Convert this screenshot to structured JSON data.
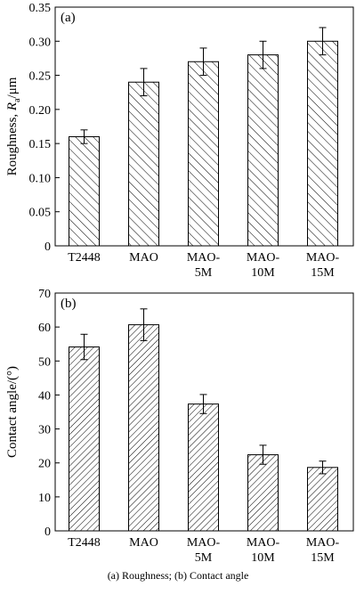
{
  "caption": "(a) Roughness; (b) Contact angle",
  "chart_data": [
    {
      "type": "bar",
      "panel_label": "(a)",
      "categories": [
        [
          "T2448"
        ],
        [
          "MAO"
        ],
        [
          "MAO-",
          "5M"
        ],
        [
          "MAO-",
          "10M"
        ],
        [
          "MAO-",
          "15M"
        ]
      ],
      "values": [
        0.16,
        0.24,
        0.27,
        0.28,
        0.3
      ],
      "errors": [
        0.01,
        0.02,
        0.02,
        0.02,
        0.02
      ],
      "ylabel_main": "Roughness, ",
      "ylabel_var": "R",
      "ylabel_sub": "a",
      "ylabel_unit": "/μm",
      "ylim": [
        0,
        0.35
      ],
      "yticks": [
        "0",
        "0.05",
        "0.10",
        "0.15",
        "0.20",
        "0.25",
        "0.30",
        "0.35"
      ],
      "hatch": "backslash"
    },
    {
      "type": "bar",
      "panel_label": "(b)",
      "categories": [
        [
          "T2448"
        ],
        [
          "MAO"
        ],
        [
          "MAO-",
          "5M"
        ],
        [
          "MAO-",
          "10M"
        ],
        [
          "MAO-",
          "15M"
        ]
      ],
      "values": [
        58,
        65,
        40,
        24,
        20
      ],
      "errors": [
        4,
        5,
        3,
        3,
        2
      ],
      "ylabel_main": "Contact angle/(°)",
      "ylim": [
        0,
        75
      ],
      "yticks": [
        "0",
        "10",
        "20",
        "30",
        "40",
        "50",
        "60",
        "70"
      ],
      "hatch": "slash"
    }
  ]
}
